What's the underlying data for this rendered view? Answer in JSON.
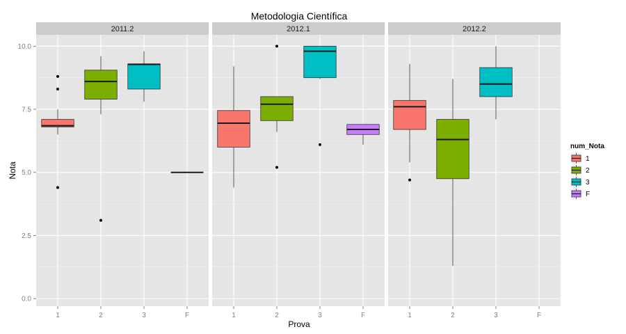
{
  "chart_data": {
    "type": "boxplot",
    "title": "Metodologia Científica",
    "xlabel": "Prova",
    "ylabel": "Nota",
    "ylim": [
      -0.3,
      10.45
    ],
    "yticks": [
      0.0,
      2.5,
      5.0,
      7.5,
      10.0
    ],
    "ytick_labels": [
      "0.0",
      "2.5",
      "5.0",
      "7.5",
      "10.0"
    ],
    "categories": [
      "1",
      "2",
      "3",
      "F"
    ],
    "grid": true,
    "legend": {
      "title": "num_Nota",
      "placement": "right",
      "entries": [
        {
          "label": "1",
          "color": "#F8766D"
        },
        {
          "label": "2",
          "color": "#7CAE00"
        },
        {
          "label": "3",
          "color": "#00BFC4"
        },
        {
          "label": "F",
          "color": "#C77CFF"
        }
      ]
    },
    "facets": [
      {
        "label": "2011.2",
        "boxes": [
          {
            "category": "1",
            "q1": 6.8,
            "median": 6.85,
            "q3": 7.1,
            "whisker_low": 6.5,
            "whisker_high": 7.5,
            "outliers": [
              8.8,
              8.3,
              4.4
            ]
          },
          {
            "category": "2",
            "q1": 7.9,
            "median": 8.6,
            "q3": 9.05,
            "whisker_low": 7.3,
            "whisker_high": 9.6,
            "outliers": [
              3.1
            ]
          },
          {
            "category": "3",
            "q1": 8.3,
            "median": 9.28,
            "q3": 9.3,
            "whisker_low": 7.8,
            "whisker_high": 9.8,
            "outliers": []
          },
          {
            "category": "F",
            "q1": 5.0,
            "median": 5.0,
            "q3": 5.0,
            "whisker_low": 5.0,
            "whisker_high": 5.0,
            "outliers": []
          }
        ]
      },
      {
        "label": "2012.1",
        "boxes": [
          {
            "category": "1",
            "q1": 6.0,
            "median": 6.95,
            "q3": 7.45,
            "whisker_low": 4.4,
            "whisker_high": 9.2,
            "outliers": []
          },
          {
            "category": "2",
            "q1": 7.05,
            "median": 7.7,
            "q3": 8.0,
            "whisker_low": 6.6,
            "whisker_high": 8.0,
            "outliers": [
              10.0,
              5.2
            ]
          },
          {
            "category": "3",
            "q1": 8.75,
            "median": 9.8,
            "q3": 10.0,
            "whisker_low": 8.7,
            "whisker_high": 10.0,
            "outliers": [
              6.1
            ]
          },
          {
            "category": "F",
            "q1": 6.5,
            "median": 6.7,
            "q3": 6.9,
            "whisker_low": 6.1,
            "whisker_high": 6.9,
            "outliers": []
          }
        ]
      },
      {
        "label": "2012.2",
        "boxes": [
          {
            "category": "1",
            "q1": 6.7,
            "median": 7.6,
            "q3": 7.85,
            "whisker_low": 5.4,
            "whisker_high": 9.3,
            "outliers": [
              4.7
            ]
          },
          {
            "category": "2",
            "q1": 4.75,
            "median": 6.3,
            "q3": 7.1,
            "whisker_low": 1.3,
            "whisker_high": 8.7,
            "outliers": []
          },
          {
            "category": "3",
            "q1": 8.0,
            "median": 8.5,
            "q3": 9.15,
            "whisker_low": 7.1,
            "whisker_high": 10.0,
            "outliers": []
          }
        ]
      }
    ]
  }
}
